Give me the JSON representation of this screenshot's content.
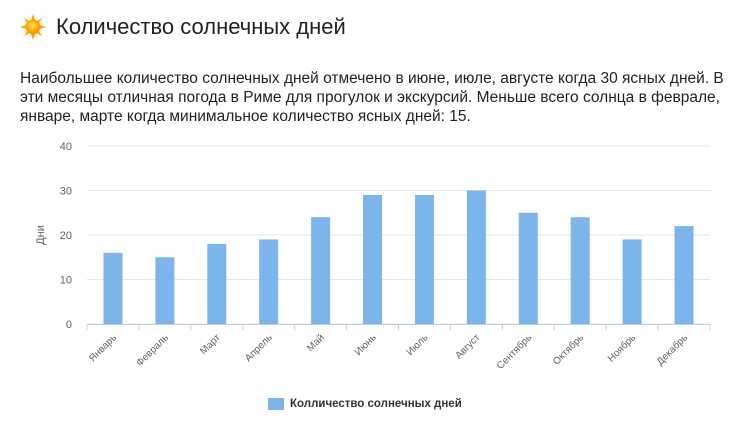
{
  "header": {
    "title": "Количество солнечных дней",
    "icon": "sun-icon"
  },
  "description": "Наибольшее количество солнечных дней отмечено в июне, июле, августе когда 30 ясных дней. В эти месяцы отличная погода в Риме для прогулок и экскурсий. Меньше всего солнца в феврале, январе, марте когда минимальное количество ясных дней: 15.",
  "colors": {
    "bar": "#7cb5ec",
    "grid": "#e6e6e6",
    "axis": "#c0d0e0"
  },
  "chart_data": {
    "type": "bar",
    "categories": [
      "Январь",
      "Февраль",
      "Март",
      "Апрель",
      "Май",
      "Июнь",
      "Июль",
      "Август",
      "Сентябрь",
      "Октябрь",
      "Ноябрь",
      "Декабрь"
    ],
    "series": [
      {
        "name": "Колличество солнечных дней",
        "values": [
          16,
          15,
          18,
          19,
          24,
          29,
          29,
          30,
          25,
          24,
          19,
          22
        ]
      }
    ],
    "ylabel": "Дни",
    "xlabel": "",
    "ylim": [
      0,
      40
    ],
    "yticks": [
      0,
      10,
      20,
      30,
      40
    ],
    "grid": true,
    "legend": "bottom-center"
  }
}
